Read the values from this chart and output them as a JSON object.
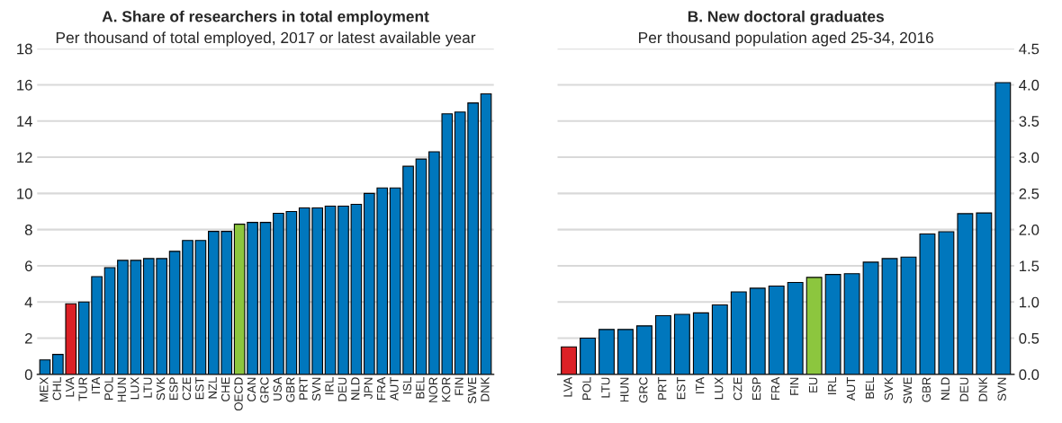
{
  "chart_data": [
    {
      "type": "bar",
      "title": "A. Share of researchers in total employment",
      "subtitle": "Per thousand of total employed, 2017 or latest available year",
      "categories": [
        "MEX",
        "CHL",
        "LVA",
        "TUR",
        "ITA",
        "POL",
        "HUN",
        "LUX",
        "LTU",
        "SVK",
        "ESP",
        "CZE",
        "EST",
        "NZL",
        "CHE",
        "OECD",
        "CAN",
        "GRC",
        "USA",
        "GBR",
        "PRT",
        "SVN",
        "IRL",
        "DEU",
        "NLD",
        "JPN",
        "FRA",
        "AUT",
        "ISL",
        "BEL",
        "NOR",
        "KOR",
        "FIN",
        "SWE",
        "DNK"
      ],
      "values": [
        0.8,
        1.1,
        3.9,
        4.0,
        5.4,
        5.9,
        6.3,
        6.3,
        6.4,
        6.4,
        6.8,
        7.4,
        7.4,
        7.9,
        7.9,
        8.3,
        8.4,
        8.4,
        8.9,
        9.0,
        9.2,
        9.2,
        9.3,
        9.3,
        9.4,
        10.0,
        10.3,
        10.3,
        11.5,
        11.9,
        12.3,
        14.4,
        14.5,
        15.0,
        15.5
      ],
      "colors": [
        "#0077bd",
        "#0077bd",
        "#dc2126",
        "#0077bd",
        "#0077bd",
        "#0077bd",
        "#0077bd",
        "#0077bd",
        "#0077bd",
        "#0077bd",
        "#0077bd",
        "#0077bd",
        "#0077bd",
        "#0077bd",
        "#0077bd",
        "#8cc63e",
        "#0077bd",
        "#0077bd",
        "#0077bd",
        "#0077bd",
        "#0077bd",
        "#0077bd",
        "#0077bd",
        "#0077bd",
        "#0077bd",
        "#0077bd",
        "#0077bd",
        "#0077bd",
        "#0077bd",
        "#0077bd",
        "#0077bd",
        "#0077bd",
        "#0077bd",
        "#0077bd",
        "#0077bd"
      ],
      "ylim": [
        0,
        18
      ],
      "yticks": [
        0,
        2,
        4,
        6,
        8,
        10,
        12,
        14,
        16,
        18
      ],
      "grid": "y",
      "legend": false
    },
    {
      "type": "bar",
      "title": "B. New doctoral graduates",
      "subtitle": "Per thousand population aged 25-34, 2016",
      "categories": [
        "LVA",
        "POL",
        "LTU",
        "HUN",
        "GRC",
        "PRT",
        "EST",
        "ITA",
        "LUX",
        "CZE",
        "ESP",
        "FRA",
        "FIN",
        "EU",
        "IRL",
        "AUT",
        "BEL",
        "SVK",
        "SWE",
        "GBR",
        "NLD",
        "DEU",
        "DNK",
        "SVN"
      ],
      "values": [
        0.38,
        0.5,
        0.62,
        0.62,
        0.67,
        0.81,
        0.83,
        0.85,
        0.96,
        1.14,
        1.19,
        1.22,
        1.27,
        1.34,
        1.38,
        1.39,
        1.55,
        1.6,
        1.62,
        1.94,
        1.97,
        2.22,
        2.23,
        4.03
      ],
      "colors": [
        "#dc2126",
        "#0077bd",
        "#0077bd",
        "#0077bd",
        "#0077bd",
        "#0077bd",
        "#0077bd",
        "#0077bd",
        "#0077bd",
        "#0077bd",
        "#0077bd",
        "#0077bd",
        "#0077bd",
        "#8cc63e",
        "#0077bd",
        "#0077bd",
        "#0077bd",
        "#0077bd",
        "#0077bd",
        "#0077bd",
        "#0077bd",
        "#0077bd",
        "#0077bd",
        "#0077bd"
      ],
      "ylim": [
        0,
        4.5
      ],
      "yticks": [
        {
          "value": 0,
          "label": "0.0"
        },
        {
          "value": 0.5,
          "label": "0.5"
        },
        {
          "value": 1,
          "label": "1.0"
        },
        {
          "value": 1.5,
          "label": "1.5"
        },
        {
          "value": 2,
          "label": "2.0"
        },
        {
          "value": 2.5,
          "label": "2.5"
        },
        {
          "value": 3,
          "label": "3.0"
        },
        {
          "value": 3.5,
          "label": "3.5"
        },
        {
          "value": 4,
          "label": "4.0"
        },
        {
          "value": 4.5,
          "label": "4.5"
        }
      ],
      "grid": "y",
      "legend": false
    }
  ]
}
